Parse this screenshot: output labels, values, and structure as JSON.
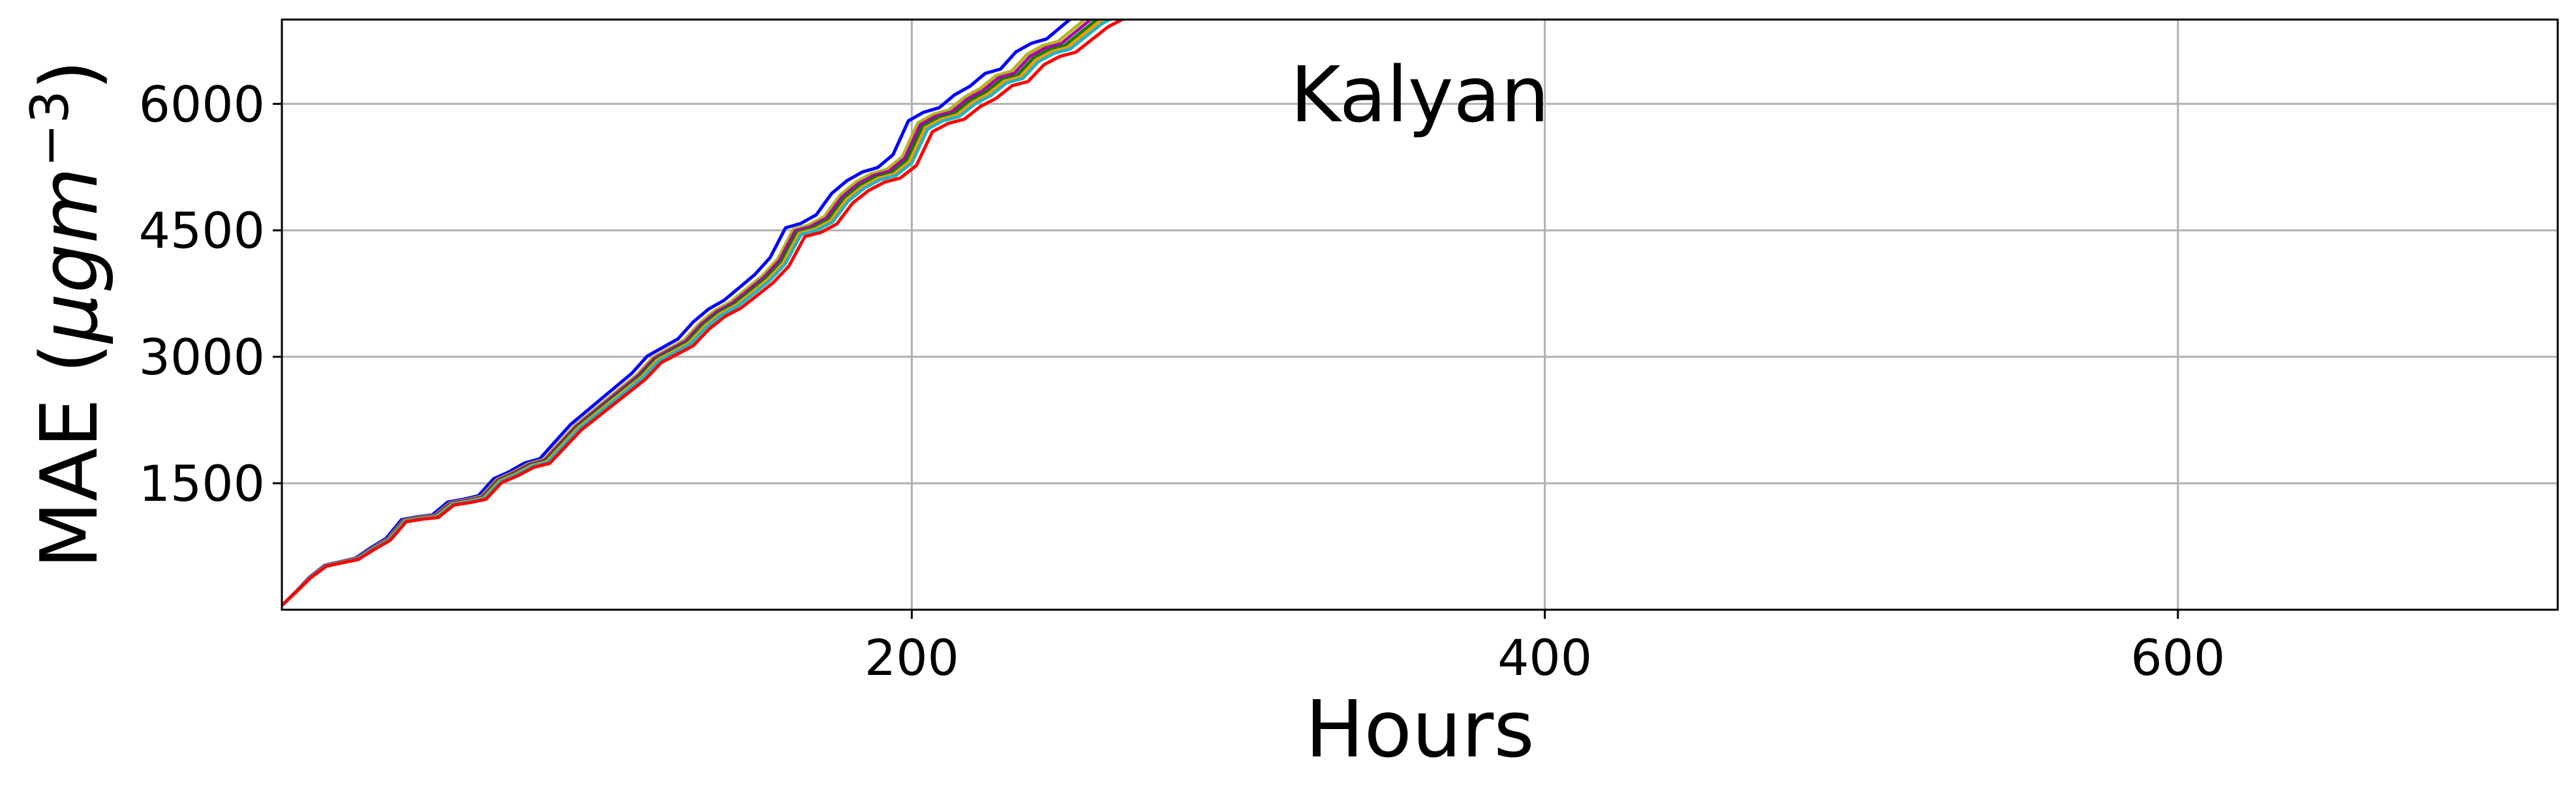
{
  "chart_data": {
    "type": "line",
    "title": "Kalyan",
    "xlabel": "Hours",
    "ylabel_text": "MAE (",
    "ylabel_mu": "μ",
    "ylabel_g": "g",
    "ylabel_m": "m",
    "ylabel_exp": "−3",
    "ylabel_close": ")",
    "xlim": [
      1,
      720
    ],
    "ylim": [
      0,
      7000
    ],
    "xticks": [
      200,
      400,
      600
    ],
    "xtick_labels": [
      "200",
      "400",
      "600"
    ],
    "yticks": [
      1500,
      3000,
      4500,
      6000
    ],
    "ytick_labels": [
      "1500",
      "3000",
      "4500",
      "6000"
    ],
    "grid": true,
    "legend": false,
    "base_curve": {
      "x": [
        1,
        6,
        10,
        15,
        20,
        25,
        30,
        35,
        40,
        45,
        50,
        55,
        60,
        65,
        70,
        75,
        80,
        85,
        90,
        95,
        100,
        105,
        110,
        115,
        120,
        125,
        130,
        135,
        140,
        145,
        150,
        155,
        160,
        165,
        170,
        175,
        180,
        185,
        190,
        195,
        200,
        205,
        210,
        215,
        220,
        225,
        230,
        235,
        240,
        245,
        250,
        255,
        260,
        265,
        270
      ],
      "y": [
        50,
        230,
        380,
        520,
        560,
        600,
        720,
        830,
        1050,
        1080,
        1100,
        1250,
        1280,
        1320,
        1520,
        1600,
        1700,
        1750,
        1950,
        2150,
        2300,
        2450,
        2600,
        2750,
        2950,
        3050,
        3150,
        3350,
        3500,
        3600,
        3750,
        3900,
        4100,
        4450,
        4500,
        4600,
        4850,
        5000,
        5100,
        5150,
        5300,
        5700,
        5800,
        5850,
        6000,
        6100,
        6250,
        6300,
        6500,
        6600,
        6650,
        6800,
        6950,
        7050,
        7150
      ]
    },
    "series": [
      {
        "color": "#0000ff",
        "offset": 130,
        "x_shift": -8
      },
      {
        "color": "#b5b51e",
        "offset": 100,
        "x_shift": -4
      },
      {
        "color": "#aa00aa",
        "offset": 70,
        "x_shift": -3
      },
      {
        "color": "#008000",
        "offset": 40,
        "x_shift": -2
      },
      {
        "color": "#ff9900",
        "offset": 20,
        "x_shift": -1
      },
      {
        "color": "#1fb5c4",
        "offset": 0,
        "x_shift": 0
      },
      {
        "color": "#ff0000",
        "offset": -40,
        "x_shift": 2
      }
    ]
  }
}
